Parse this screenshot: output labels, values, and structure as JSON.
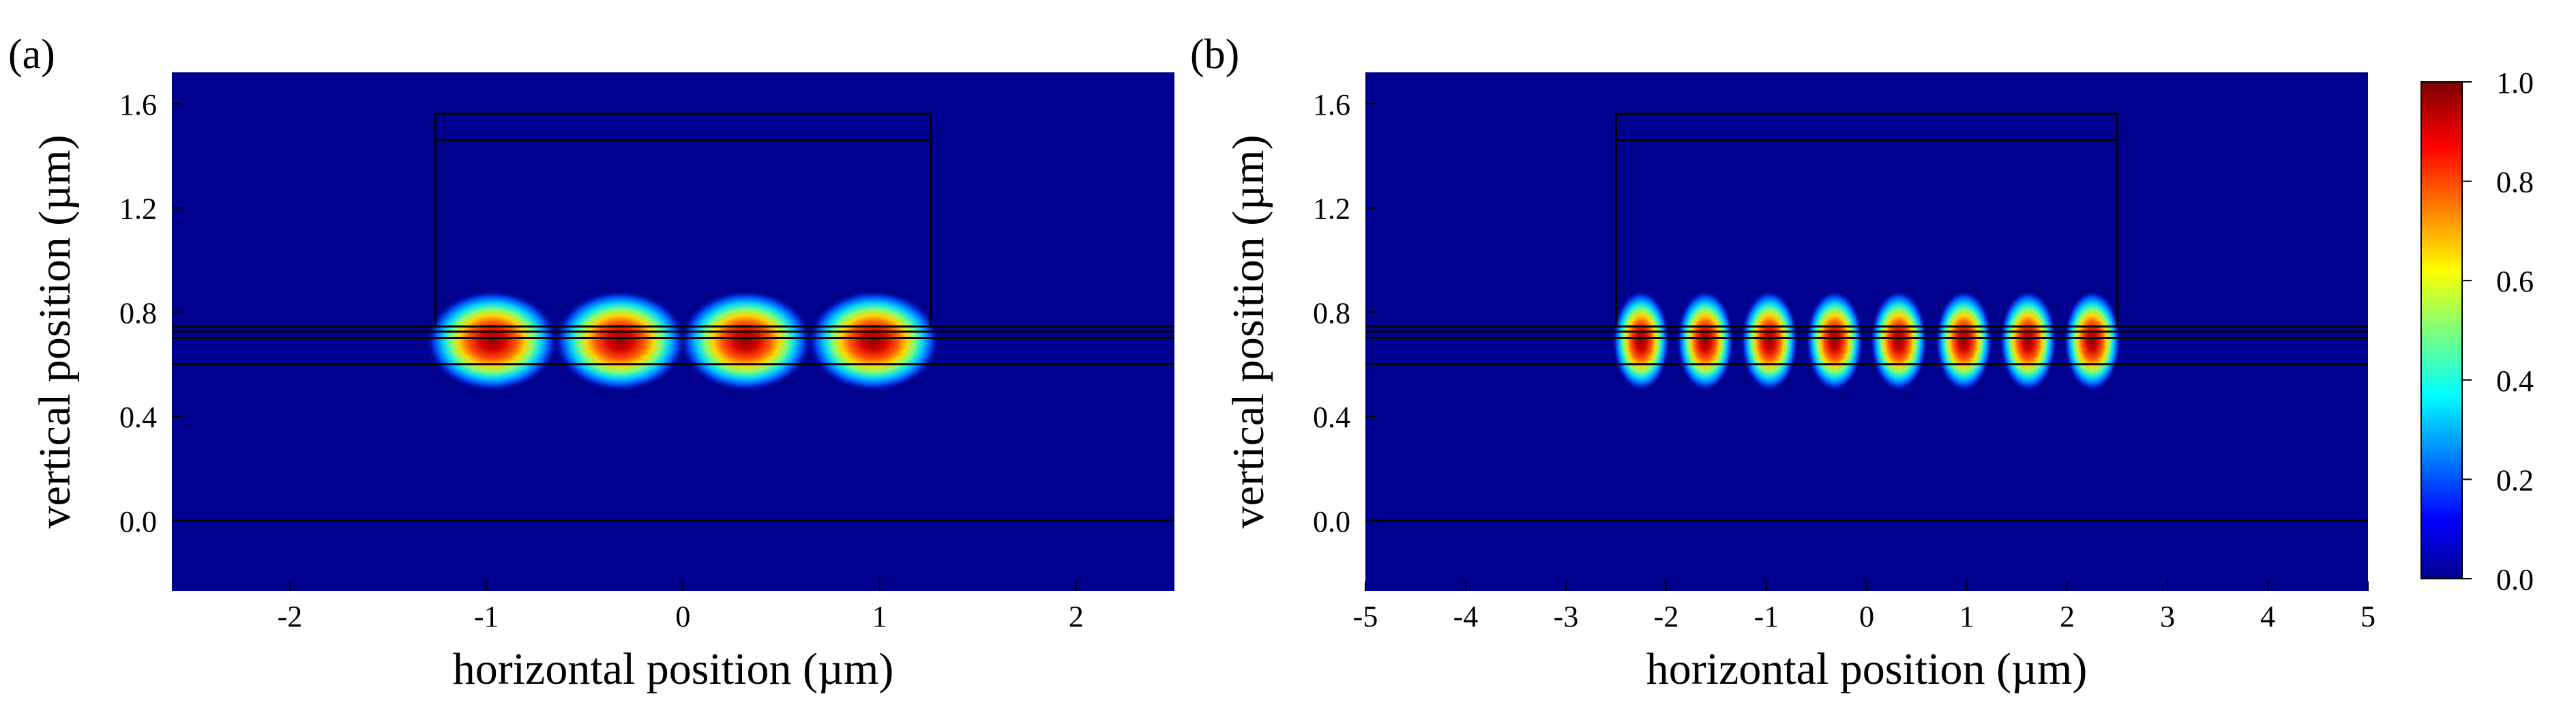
{
  "colors": {
    "background": "#00008F",
    "structure_lines": "#000000",
    "colormap": "jet"
  },
  "chart_data": [
    {
      "panel": "(a)",
      "type": "heatmap",
      "xlabel": "horizontal position (µm)",
      "ylabel": "vertical position (µm)",
      "xlim": [
        -2.6,
        2.5
      ],
      "ylim": [
        -0.27,
        1.72
      ],
      "xticks": [
        -2,
        -1,
        0,
        1,
        2
      ],
      "xtick_labels": [
        "-2",
        "-1",
        "0",
        "1",
        "2"
      ],
      "yticks": [
        0.0,
        0.4,
        0.8,
        1.2,
        1.6
      ],
      "ytick_labels": [
        "0.0",
        "0.4",
        "0.8",
        "1.2",
        "1.6"
      ],
      "intensity_peaks": {
        "x": [
          -0.97,
          -0.32,
          0.32,
          0.97
        ],
        "y": 0.69,
        "value": 1.0,
        "sigma_x_um": 0.13,
        "sigma_y_um": 0.075
      },
      "structure": {
        "horizontal_lines_y": [
          0.0,
          0.6,
          0.7,
          0.725,
          0.745
        ],
        "ridge_x": [
          -1.26,
          1.26
        ],
        "ridge_top_y": [
          1.46,
          1.56
        ],
        "ridge_bottom_y": 0.745
      }
    },
    {
      "panel": "(b)",
      "type": "heatmap",
      "xlabel": "horizontal position (µm)",
      "ylabel": "vertical position (µm)",
      "xlim": [
        -5,
        5
      ],
      "ylim": [
        -0.27,
        1.72
      ],
      "xticks": [
        -5,
        -4,
        -3,
        -2,
        -1,
        0,
        1,
        2,
        3,
        4,
        5
      ],
      "xtick_labels": [
        "-5",
        "-4",
        "-3",
        "-2",
        "-1",
        "0",
        "1",
        "2",
        "3",
        "4",
        "5"
      ],
      "yticks": [
        0.0,
        0.4,
        0.8,
        1.2,
        1.6
      ],
      "ytick_labels": [
        "0.0",
        "0.4",
        "0.8",
        "1.2",
        "1.6"
      ],
      "intensity_peaks": {
        "x": [
          -2.25,
          -1.61,
          -0.97,
          -0.32,
          0.32,
          0.97,
          1.61,
          2.25
        ],
        "y": 0.69,
        "value": 1.0,
        "sigma_x_um": 0.11,
        "sigma_y_um": 0.075
      },
      "structure": {
        "horizontal_lines_y": [
          0.0,
          0.6,
          0.7,
          0.725,
          0.745
        ],
        "ridge_x": [
          -2.5,
          2.5
        ],
        "ridge_top_y": [
          1.46,
          1.56
        ],
        "ridge_bottom_y": 0.745
      }
    }
  ],
  "colorbar": {
    "range": [
      0.0,
      1.0
    ],
    "ticks": [
      0.0,
      0.2,
      0.4,
      0.6,
      0.8,
      1.0
    ],
    "tick_labels": [
      "0.0",
      "0.2",
      "0.4",
      "0.6",
      "0.8",
      "1.0"
    ]
  }
}
